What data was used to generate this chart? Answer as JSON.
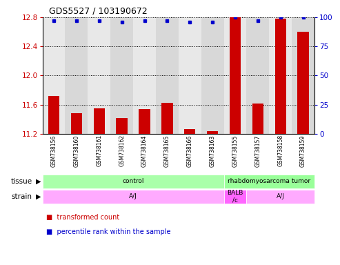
{
  "title": "GDS5527 / 103190672",
  "samples": [
    "GSM738156",
    "GSM738160",
    "GSM738161",
    "GSM738162",
    "GSM738164",
    "GSM738165",
    "GSM738166",
    "GSM738163",
    "GSM738155",
    "GSM738157",
    "GSM738158",
    "GSM738159"
  ],
  "bar_values": [
    11.72,
    11.48,
    11.55,
    11.42,
    11.54,
    11.63,
    11.27,
    11.24,
    12.8,
    11.62,
    12.78,
    12.6
  ],
  "percentile_values": [
    97,
    97,
    97,
    96,
    97,
    97,
    96,
    96,
    100,
    97,
    100,
    100
  ],
  "ylim_left": [
    11.2,
    12.8
  ],
  "ylim_right": [
    0,
    100
  ],
  "yticks_left": [
    11.2,
    11.6,
    12.0,
    12.4,
    12.8
  ],
  "yticks_right": [
    0,
    25,
    50,
    75,
    100
  ],
  "bar_color": "#cc0000",
  "dot_color": "#0000cc",
  "tissue_groups": [
    {
      "label": "control",
      "start": 0,
      "end": 8,
      "color": "#aaffaa"
    },
    {
      "label": "rhabdomyosarcoma tumor",
      "start": 8,
      "end": 12,
      "color": "#99ff99"
    }
  ],
  "strain_groups": [
    {
      "label": "A/J",
      "start": 0,
      "end": 8,
      "color": "#ffaaff"
    },
    {
      "label": "BALB\n/c",
      "start": 8,
      "end": 9,
      "color": "#ff66ff"
    },
    {
      "label": "A/J",
      "start": 9,
      "end": 12,
      "color": "#ffaaff"
    }
  ],
  "plot_bg": "#f0f0f0",
  "legend_red": "transformed count",
  "legend_blue": "percentile rank within the sample"
}
